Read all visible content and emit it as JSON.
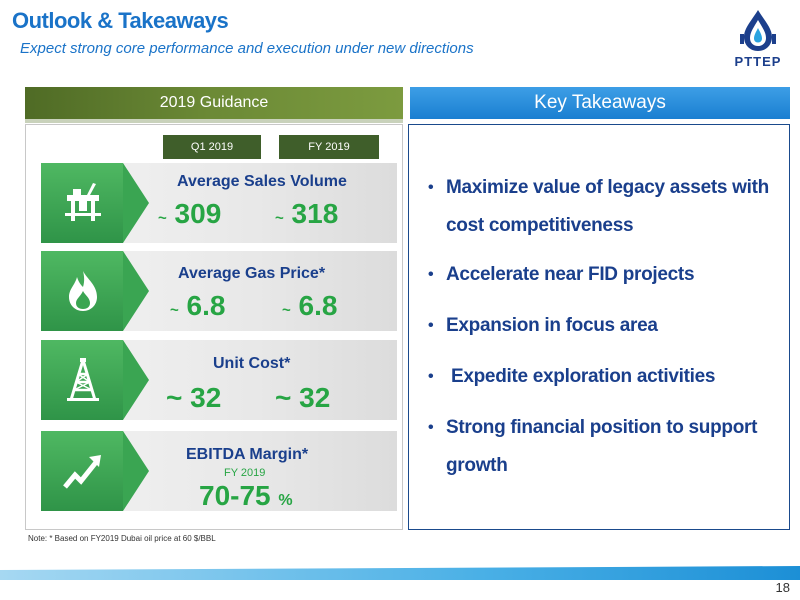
{
  "header": {
    "title": "Outlook & Takeaways",
    "subtitle": "Expect strong core performance and execution under new directions",
    "logo_text": "PTTEP"
  },
  "guidance": {
    "header": "2019 Guidance",
    "col_q1": "Q1 2019",
    "col_fy": "FY 2019",
    "metrics": [
      {
        "label": "Average Sales Volume",
        "q1_prefix": "~",
        "q1": "309",
        "fy_prefix": "~",
        "fy": "318",
        "icon": "oil-platform-icon"
      },
      {
        "label": "Average Gas Price*",
        "q1_prefix": "~",
        "q1": "6.8",
        "fy_prefix": "~",
        "fy": "6.8",
        "icon": "flame-icon"
      },
      {
        "label": "Unit Cost*",
        "q1": "~ 32",
        "fy": "~ 32",
        "icon": "derrick-icon"
      },
      {
        "label": "EBITDA Margin*",
        "sub": "FY 2019",
        "value": "70-75",
        "unit": "%",
        "icon": "growth-chart-icon"
      }
    ]
  },
  "takeaways": {
    "header": "Key Takeaways",
    "items": [
      "Maximize value of legacy assets with cost competitiveness",
      "Accelerate near FID projects",
      "Expansion in focus area",
      " Expedite exploration activities",
      "Strong financial position to support growth"
    ]
  },
  "note": "Note: * Based on FY2019 Dubai oil price at 60 $/BBL",
  "page_number": "18",
  "colors": {
    "title_blue": "#1a73c8",
    "navy": "#1a3f8c",
    "green_value": "#27a544",
    "guidance_green": "#4f6b25",
    "takeaway_blue": "#1a7fd1"
  }
}
